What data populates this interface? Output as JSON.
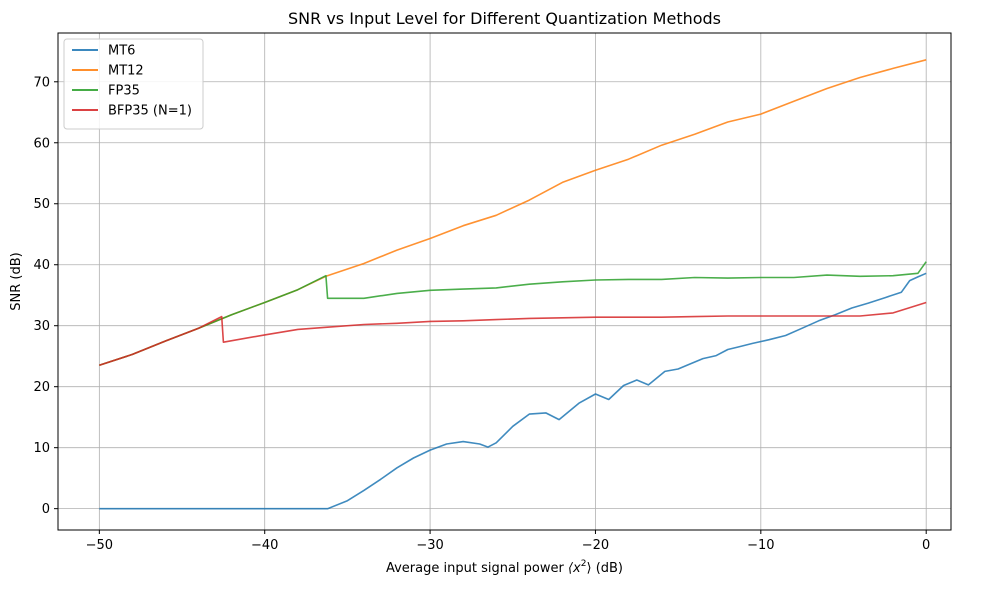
{
  "chart_data": {
    "type": "line",
    "title": "SNR vs Input Level for Different Quantization Methods",
    "xlabel_prefix": "Average input signal power ",
    "xlabel_math": "⟨x",
    "xlabel_sup": "2",
    "xlabel_math_close": "⟩",
    "xlabel_suffix": " (dB)",
    "ylabel": "SNR (dB)",
    "xlim": [
      -52.5,
      1.5
    ],
    "ylim": [
      -3.5,
      78
    ],
    "xticks": [
      -50,
      -40,
      -30,
      -20,
      -10,
      0
    ],
    "xtick_labels": [
      "−50",
      "−40",
      "−30",
      "−20",
      "−10",
      "0"
    ],
    "yticks": [
      0,
      10,
      20,
      30,
      40,
      50,
      60,
      70
    ],
    "ytick_labels": [
      "0",
      "10",
      "20",
      "30",
      "40",
      "50",
      "60",
      "70"
    ],
    "grid": true,
    "legend_position": "top-left",
    "series": [
      {
        "name": "MT6",
        "color": "#1f77b4",
        "x": [
          -50,
          -45,
          -40,
          -36.2,
          -35,
          -34,
          -33,
          -32,
          -31,
          -30,
          -29,
          -28,
          -27,
          -26.5,
          -26,
          -25,
          -24,
          -23,
          -22.2,
          -21,
          -20,
          -19.2,
          -18.3,
          -17.5,
          -16.8,
          -15.8,
          -15,
          -14.3,
          -13.5,
          -12.7,
          -12,
          -11.4,
          -10.5,
          -9.5,
          -8.5,
          -7.5,
          -6.5,
          -5.5,
          -4.5,
          -3.5,
          -2.5,
          -1.5,
          -1,
          -0.5,
          0
        ],
        "y": [
          0,
          0,
          0,
          0,
          1.3,
          3,
          4.8,
          6.7,
          8.3,
          9.6,
          10.6,
          11,
          10.6,
          10.1,
          10.8,
          13.5,
          15.5,
          15.7,
          14.6,
          17.3,
          18.8,
          17.9,
          20.2,
          21.1,
          20.3,
          22.5,
          22.9,
          23.7,
          24.6,
          25.1,
          26.1,
          26.5,
          27.1,
          27.7,
          28.4,
          29.6,
          30.8,
          31.8,
          32.9,
          33.7,
          34.6,
          35.5,
          37.4,
          38,
          38.6
        ]
      },
      {
        "name": "MT12",
        "color": "#ff7f0e",
        "x": [
          -50,
          -48,
          -46,
          -44,
          -42,
          -40,
          -38,
          -36.3,
          -34,
          -32,
          -30,
          -28,
          -26,
          -24,
          -22,
          -20,
          -18,
          -16,
          -14,
          -12,
          -10,
          -8,
          -6,
          -4,
          -2,
          0
        ],
        "y": [
          23.5,
          25.3,
          27.5,
          29.6,
          31.8,
          33.8,
          35.9,
          38.1,
          40.2,
          42.4,
          44.3,
          46.4,
          48.1,
          50.6,
          53.5,
          55.5,
          57.3,
          59.6,
          61.4,
          63.4,
          64.7,
          66.8,
          68.9,
          70.7,
          72.2,
          73.6
        ]
      },
      {
        "name": "FP35",
        "color": "#2ca02c",
        "x": [
          -50,
          -48,
          -46,
          -44,
          -42,
          -40,
          -38,
          -36.3,
          -36.2,
          -34,
          -32,
          -30,
          -28,
          -26,
          -24,
          -22,
          -20,
          -18,
          -16,
          -14,
          -12,
          -10,
          -8,
          -6,
          -4,
          -2,
          -0.5,
          0
        ],
        "y": [
          23.5,
          25.3,
          27.5,
          29.6,
          31.8,
          33.8,
          35.9,
          38.2,
          34.5,
          34.5,
          35.3,
          35.8,
          36,
          36.2,
          36.8,
          37.2,
          37.5,
          37.6,
          37.6,
          37.9,
          37.8,
          37.9,
          37.9,
          38.3,
          38.1,
          38.2,
          38.6,
          40.5
        ]
      },
      {
        "name": "BFP35 (N=1)",
        "color": "#d62728",
        "x": [
          -50,
          -48,
          -46,
          -44,
          -42.6,
          -42.5,
          -40,
          -38,
          -36,
          -34,
          -32,
          -30,
          -28,
          -26,
          -24,
          -22,
          -20,
          -18,
          -16,
          -14,
          -12,
          -10,
          -8,
          -6,
          -4,
          -2,
          0
        ],
        "y": [
          23.5,
          25.3,
          27.5,
          29.6,
          31.5,
          27.3,
          28.5,
          29.4,
          29.8,
          30.2,
          30.4,
          30.7,
          30.8,
          31,
          31.2,
          31.3,
          31.4,
          31.4,
          31.4,
          31.5,
          31.6,
          31.6,
          31.6,
          31.6,
          31.6,
          32.1,
          33.8
        ]
      }
    ]
  }
}
